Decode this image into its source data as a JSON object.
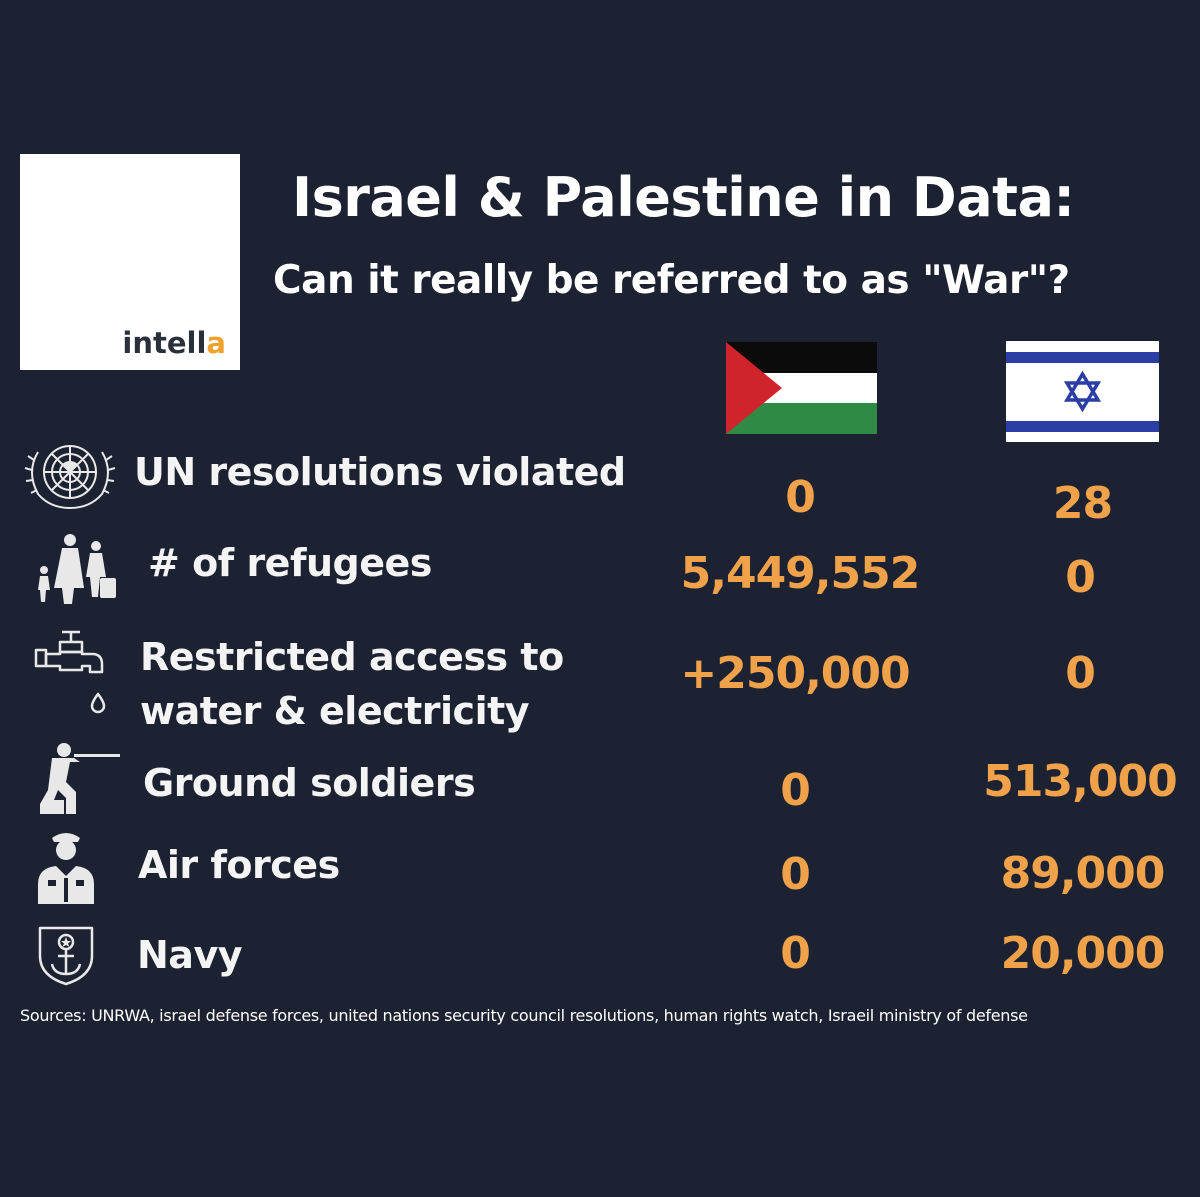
{
  "logo": {
    "text_main": "intell",
    "text_accent": "a"
  },
  "header": {
    "title": "Israel & Palestine in Data:",
    "subtitle": "Can it really be referred to as \"War\"?"
  },
  "columns": [
    {
      "flag": "palestine-flag"
    },
    {
      "flag": "israel-flag"
    }
  ],
  "rows": [
    {
      "icon": "un-emblem-icon",
      "label": "UN resolutions violated",
      "palestine": "0",
      "israel": "28"
    },
    {
      "icon": "refugees-icon",
      "label": "# of refugees",
      "palestine": "5,449,552",
      "israel": "0"
    },
    {
      "icon": "water-tap-icon",
      "label_line1": "Restricted access to",
      "label_line2": "water & electricity",
      "palestine": "+250,000",
      "israel": "0"
    },
    {
      "icon": "soldier-icon",
      "label": "Ground soldiers",
      "palestine": "0",
      "israel": "513,000"
    },
    {
      "icon": "pilot-icon",
      "label": "Air forces",
      "palestine": "0",
      "israel": "89,000"
    },
    {
      "icon": "navy-anchor-icon",
      "label": "Navy",
      "palestine": "0",
      "israel": "20,000"
    }
  ],
  "sources": "Sources: UNRWA, israel defense forces, united nations security council resolutions, human rights watch, Israeil ministry of defense",
  "colors": {
    "background": "#1c2231",
    "value": "#f0a24a",
    "logo_accent": "#f2a12c",
    "flag_red": "#d1232b",
    "flag_green": "#2e8a45",
    "flag_blue": "#2b3ea5"
  }
}
